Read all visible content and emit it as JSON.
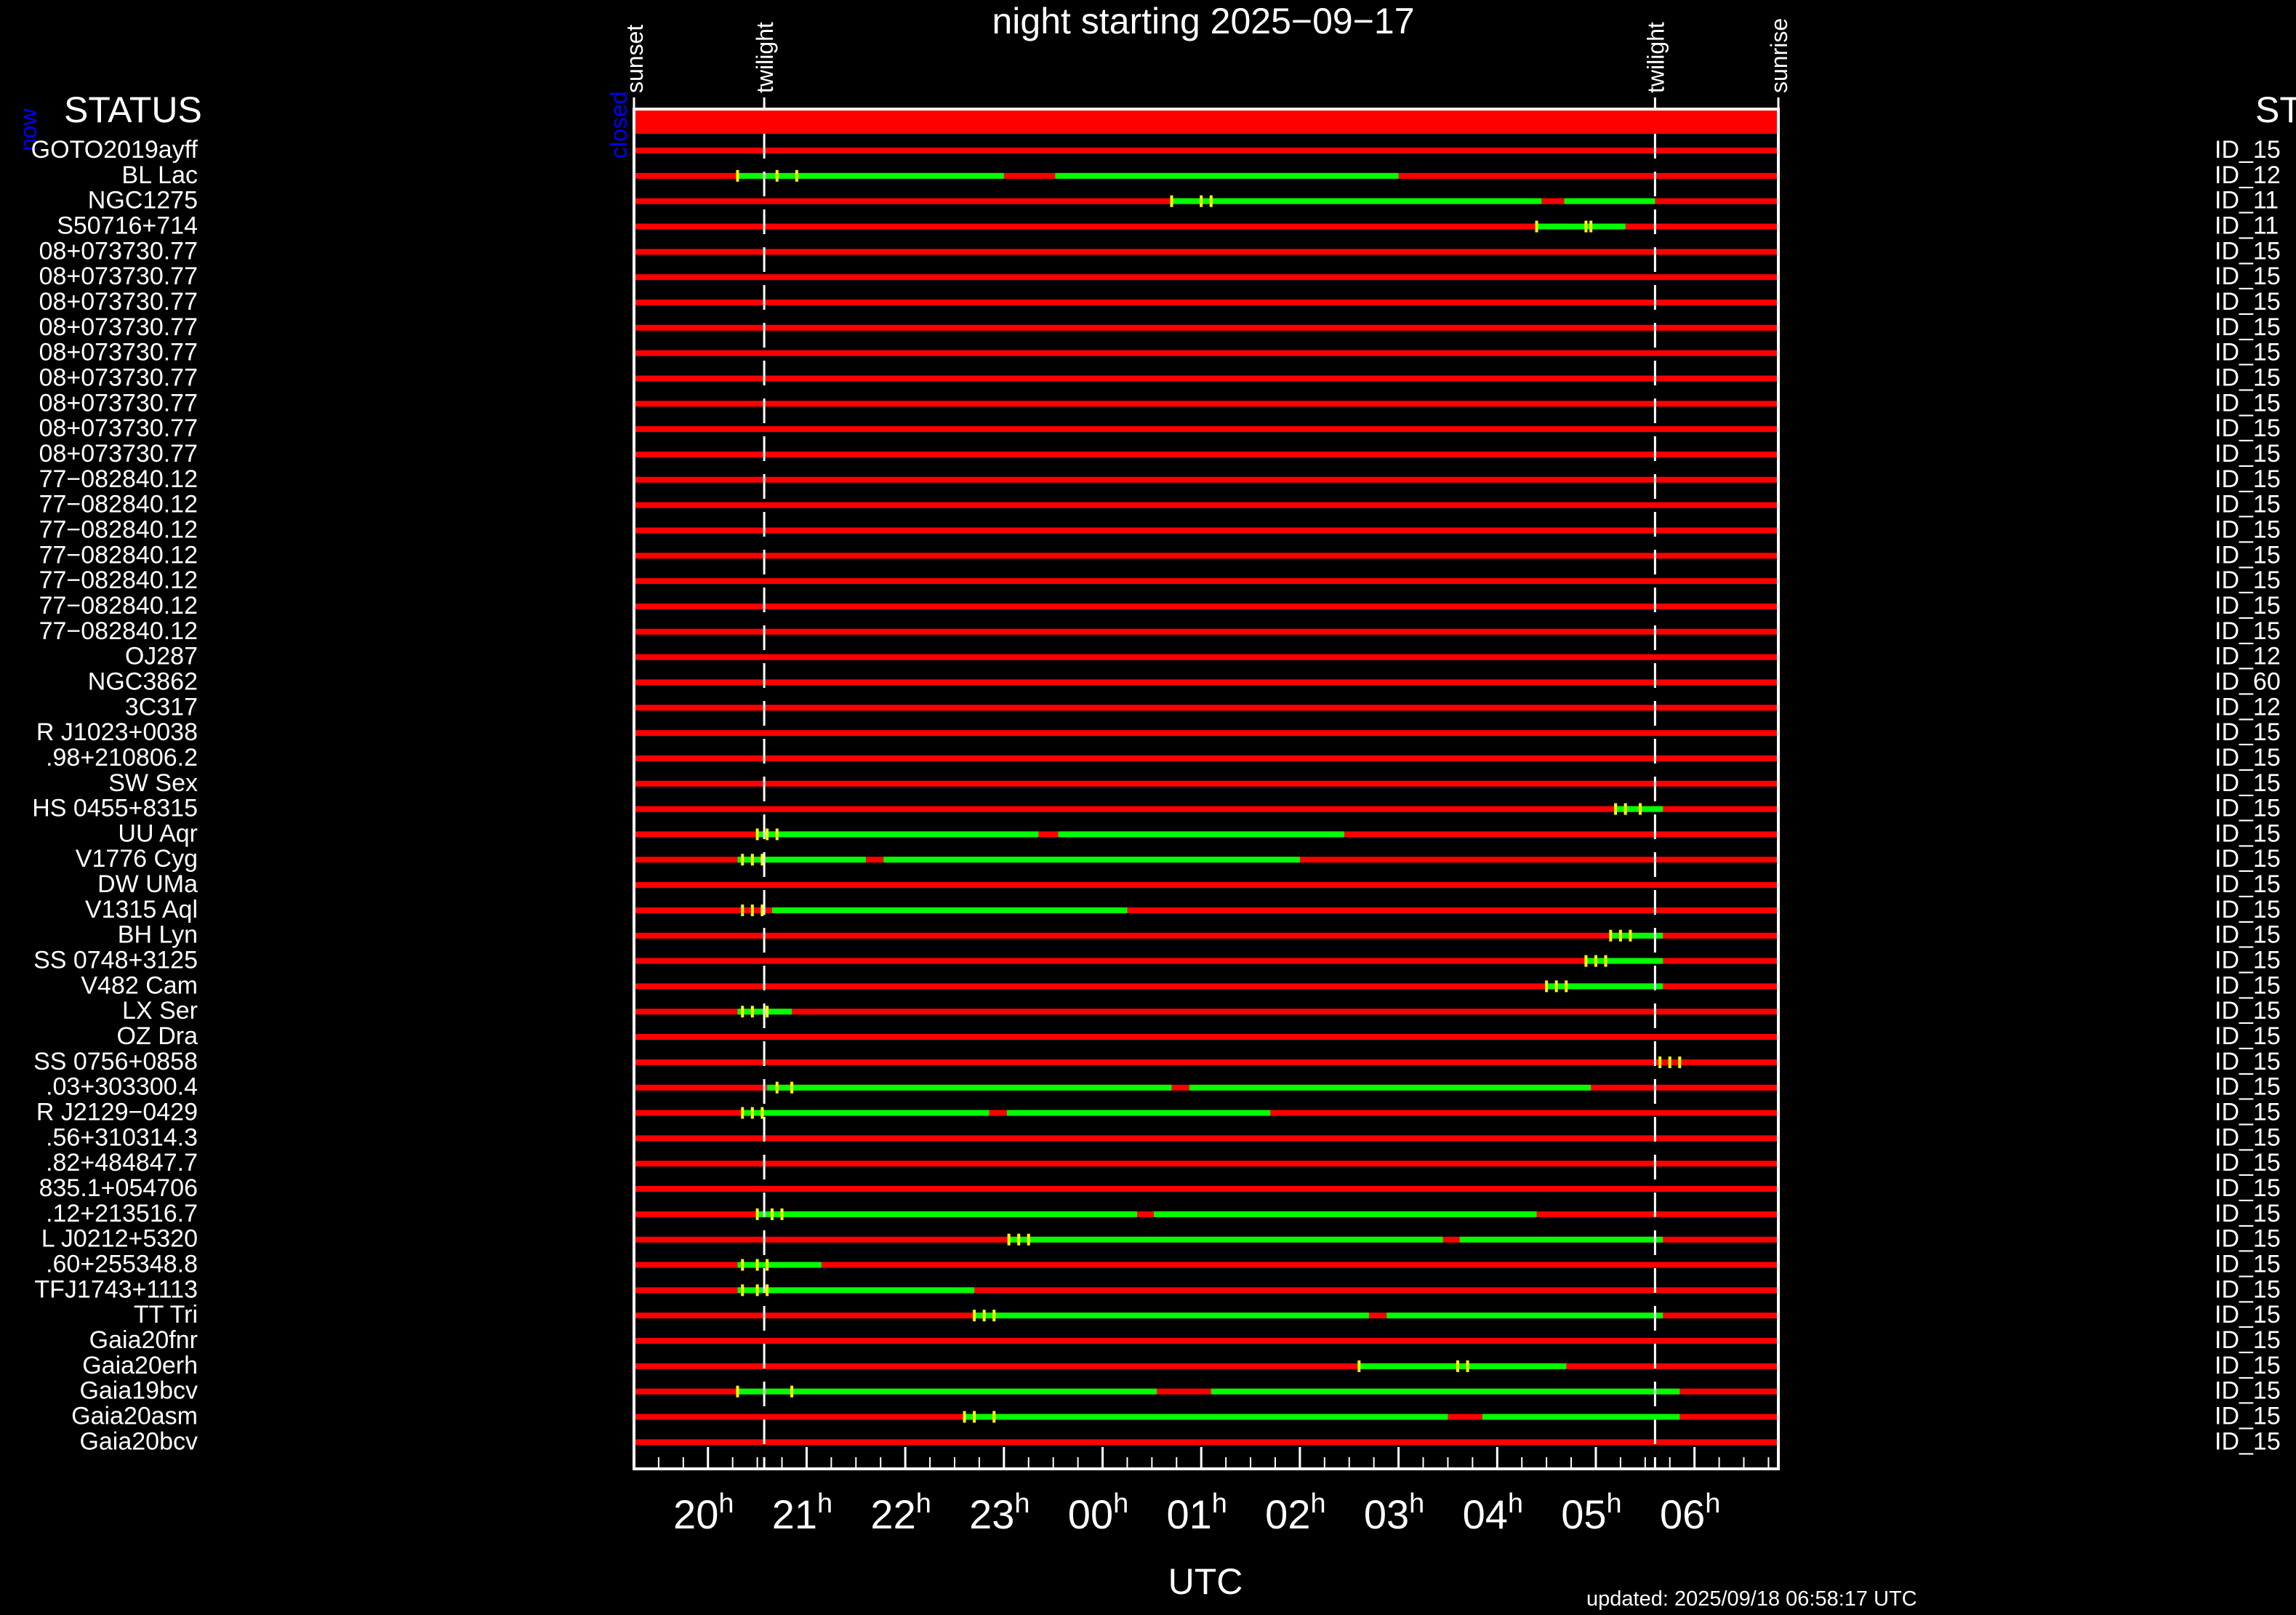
{
  "page": {
    "title": "night starting 2025−09−17",
    "status_header_left": "STATUS",
    "status_header_right": "STAT",
    "now_label": "now",
    "closed_label": "closed",
    "xlabel": "UTC",
    "updated": "updated: 2025/09/18 06:58:17 UTC"
  },
  "chart_data": {
    "type": "timeline",
    "x_unit": "hours UTC (values > 24 are after midnight)",
    "x_range": [
      19.25,
      30.85
    ],
    "hour_ticks": [
      {
        "label": "20",
        "sup": "h",
        "t": 20
      },
      {
        "label": "21",
        "sup": "h",
        "t": 21
      },
      {
        "label": "22",
        "sup": "h",
        "t": 22
      },
      {
        "label": "23",
        "sup": "h",
        "t": 23
      },
      {
        "label": "00",
        "sup": "h",
        "t": 24
      },
      {
        "label": "01",
        "sup": "h",
        "t": 25
      },
      {
        "label": "02",
        "sup": "h",
        "t": 26
      },
      {
        "label": "03",
        "sup": "h",
        "t": 27
      },
      {
        "label": "04",
        "sup": "h",
        "t": 28
      },
      {
        "label": "05",
        "sup": "h",
        "t": 29
      },
      {
        "label": "06",
        "sup": "h",
        "t": 30
      }
    ],
    "events": [
      {
        "label": "sunset",
        "t": 19.25,
        "dashed": false
      },
      {
        "label": "twilight",
        "t": 20.57,
        "dashed": true
      },
      {
        "label": "twilight",
        "t": 29.6,
        "dashed": true
      },
      {
        "label": "sunrise",
        "t": 30.85,
        "dashed": false
      }
    ],
    "colors": {
      "unavailable": "#ff0000",
      "available": "#00ff00",
      "marker": "#ffff00",
      "now": "#0000ff",
      "grid": "#ffffff"
    },
    "status_bar": {
      "state": "closed",
      "color": "#ff0000"
    },
    "rows": [
      {
        "name": "GOTO2019ayff",
        "id": "ID_15",
        "segs": [],
        "marks": []
      },
      {
        "name": "BL Lac",
        "id": "ID_12",
        "segs": [
          [
            20.3,
            23.0
          ],
          [
            23.52,
            27.0
          ]
        ],
        "marks": [
          20.3,
          20.7,
          20.9
        ]
      },
      {
        "name": "NGC1275",
        "id": "ID_11",
        "segs": [
          [
            24.7,
            28.45
          ],
          [
            28.68,
            29.6
          ]
        ],
        "marks": [
          24.7,
          25.0,
          25.1
        ]
      },
      {
        "name": "S50716+714",
        "id": "ID_11",
        "segs": [
          [
            28.4,
            29.3
          ]
        ],
        "marks": [
          28.4,
          28.9,
          28.95
        ]
      },
      {
        "name": "08+073730.77",
        "id": "ID_15",
        "segs": [],
        "marks": []
      },
      {
        "name": "08+073730.77",
        "id": "ID_15",
        "segs": [],
        "marks": []
      },
      {
        "name": "08+073730.77",
        "id": "ID_15",
        "segs": [],
        "marks": []
      },
      {
        "name": "08+073730.77",
        "id": "ID_15",
        "segs": [],
        "marks": []
      },
      {
        "name": "08+073730.77",
        "id": "ID_15",
        "segs": [],
        "marks": []
      },
      {
        "name": "08+073730.77",
        "id": "ID_15",
        "segs": [],
        "marks": []
      },
      {
        "name": "08+073730.77",
        "id": "ID_15",
        "segs": [],
        "marks": []
      },
      {
        "name": "08+073730.77",
        "id": "ID_15",
        "segs": [],
        "marks": []
      },
      {
        "name": "08+073730.77",
        "id": "ID_15",
        "segs": [],
        "marks": []
      },
      {
        "name": "77−082840.12",
        "id": "ID_15",
        "segs": [],
        "marks": []
      },
      {
        "name": "77−082840.12",
        "id": "ID_15",
        "segs": [],
        "marks": []
      },
      {
        "name": "77−082840.12",
        "id": "ID_15",
        "segs": [],
        "marks": []
      },
      {
        "name": "77−082840.12",
        "id": "ID_15",
        "segs": [],
        "marks": []
      },
      {
        "name": "77−082840.12",
        "id": "ID_15",
        "segs": [],
        "marks": []
      },
      {
        "name": "77−082840.12",
        "id": "ID_15",
        "segs": [],
        "marks": []
      },
      {
        "name": "77−082840.12",
        "id": "ID_15",
        "segs": [],
        "marks": []
      },
      {
        "name": "OJ287",
        "id": "ID_12",
        "segs": [],
        "marks": []
      },
      {
        "name": "NGC3862",
        "id": "ID_60",
        "segs": [],
        "marks": []
      },
      {
        "name": "3C317",
        "id": "ID_12",
        "segs": [],
        "marks": []
      },
      {
        "name": "R J1023+0038",
        "id": "ID_15",
        "segs": [],
        "marks": []
      },
      {
        "name": ".98+210806.2",
        "id": "ID_15",
        "segs": [],
        "marks": []
      },
      {
        "name": "SW Sex",
        "id": "ID_15",
        "segs": [],
        "marks": []
      },
      {
        "name": "HS 0455+8315",
        "id": "ID_15",
        "segs": [
          [
            29.2,
            29.68
          ]
        ],
        "marks": [
          29.2,
          29.3,
          29.45
        ]
      },
      {
        "name": "UU Aqr",
        "id": "ID_15",
        "segs": [
          [
            20.5,
            23.35
          ],
          [
            23.55,
            26.45
          ]
        ],
        "marks": [
          20.5,
          20.6,
          20.7
        ]
      },
      {
        "name": "V1776 Cyg",
        "id": "ID_15",
        "segs": [
          [
            20.3,
            21.6
          ],
          [
            21.78,
            26.0
          ]
        ],
        "marks": [
          20.35,
          20.45,
          20.55
        ]
      },
      {
        "name": "DW UMa",
        "id": "ID_15",
        "segs": [],
        "marks": []
      },
      {
        "name": "V1315 Aql",
        "id": "ID_15",
        "segs": [
          [
            20.65,
            24.25
          ]
        ],
        "marks": [
          20.35,
          20.45,
          20.55
        ]
      },
      {
        "name": "BH Lyn",
        "id": "ID_15",
        "segs": [
          [
            29.15,
            29.68
          ]
        ],
        "marks": [
          29.15,
          29.25,
          29.35
        ]
      },
      {
        "name": "SS 0748+3125",
        "id": "ID_15",
        "segs": [
          [
            28.9,
            29.68
          ]
        ],
        "marks": [
          28.9,
          29.0,
          29.1
        ]
      },
      {
        "name": "V482 Cam",
        "id": "ID_15",
        "segs": [
          [
            28.5,
            29.68
          ]
        ],
        "marks": [
          28.5,
          28.6,
          28.7
        ]
      },
      {
        "name": "LX Ser",
        "id": "ID_15",
        "segs": [
          [
            20.3,
            20.85
          ]
        ],
        "marks": [
          20.35,
          20.45,
          20.6
        ]
      },
      {
        "name": "OZ Dra",
        "id": "ID_15",
        "segs": [],
        "marks": []
      },
      {
        "name": "SS 0756+0858",
        "id": "ID_15",
        "segs": [],
        "marks": [
          29.65,
          29.75,
          29.85
        ]
      },
      {
        "name": ".03+303300.4",
        "id": "ID_15",
        "segs": [
          [
            20.6,
            24.7
          ],
          [
            24.88,
            28.95
          ]
        ],
        "marks": [
          20.7,
          20.85
        ]
      },
      {
        "name": "R J2129−0429",
        "id": "ID_15",
        "segs": [
          [
            20.35,
            22.85
          ],
          [
            23.03,
            25.7
          ]
        ],
        "marks": [
          20.35,
          20.45,
          20.55
        ]
      },
      {
        "name": ".56+310314.3",
        "id": "ID_15",
        "segs": [],
        "marks": []
      },
      {
        "name": ".82+484847.7",
        "id": "ID_15",
        "segs": [],
        "marks": []
      },
      {
        "name": "835.1+054706",
        "id": "ID_15",
        "segs": [],
        "marks": []
      },
      {
        "name": ".12+213516.7",
        "id": "ID_15",
        "segs": [
          [
            20.5,
            24.35
          ],
          [
            24.52,
            28.4
          ]
        ],
        "marks": [
          20.5,
          20.65,
          20.75
        ]
      },
      {
        "name": "L J0212+5320",
        "id": "ID_15",
        "segs": [
          [
            23.05,
            27.45
          ],
          [
            27.62,
            29.68
          ]
        ],
        "marks": [
          23.05,
          23.15,
          23.25
        ]
      },
      {
        "name": ".60+255348.8",
        "id": "ID_15",
        "segs": [
          [
            20.3,
            21.15
          ]
        ],
        "marks": [
          20.35,
          20.5,
          20.6
        ]
      },
      {
        "name": "TFJ1743+1113",
        "id": "ID_15",
        "segs": [
          [
            20.3,
            22.7
          ]
        ],
        "marks": [
          20.35,
          20.5,
          20.6
        ]
      },
      {
        "name": "TT Tri",
        "id": "ID_15",
        "segs": [
          [
            22.7,
            26.7
          ],
          [
            26.88,
            29.68
          ]
        ],
        "marks": [
          22.7,
          22.8,
          22.9
        ]
      },
      {
        "name": "Gaia20fnr",
        "id": "ID_15",
        "segs": [],
        "marks": []
      },
      {
        "name": "Gaia20erh",
        "id": "ID_15",
        "segs": [
          [
            26.6,
            28.7
          ]
        ],
        "marks": [
          26.6,
          27.6,
          27.7
        ]
      },
      {
        "name": "Gaia19bcv",
        "id": "ID_15",
        "segs": [
          [
            20.3,
            24.55
          ],
          [
            25.1,
            29.85
          ]
        ],
        "marks": [
          20.3,
          20.85
        ]
      },
      {
        "name": "Gaia20asm",
        "id": "ID_15",
        "segs": [
          [
            22.6,
            27.5
          ],
          [
            27.85,
            29.85
          ]
        ],
        "marks": [
          22.6,
          22.7,
          22.9
        ]
      },
      {
        "name": "Gaia20bcv",
        "id": "ID_15",
        "segs": [],
        "marks": []
      }
    ]
  }
}
